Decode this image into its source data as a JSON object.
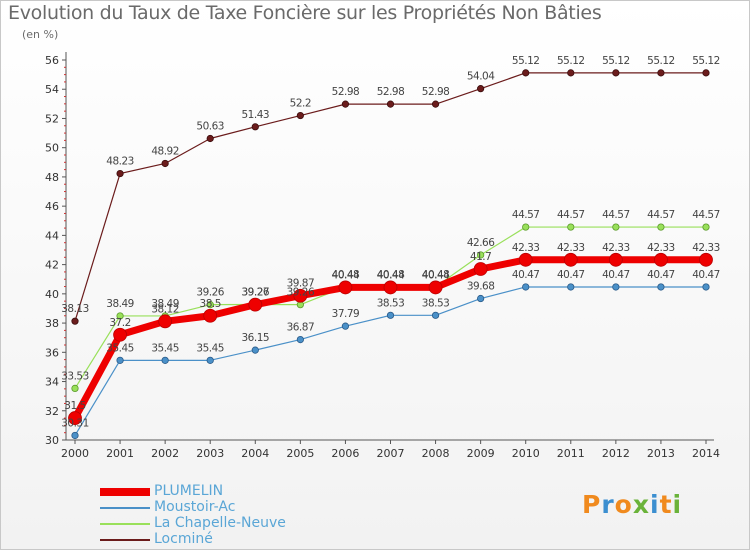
{
  "chart_data": {
    "type": "line",
    "title": "Evolution du Taux de Taxe Foncière sur les Propriétés Non Bâties",
    "unit_label": "(en %)",
    "xlabel": "",
    "ylabel": "",
    "categories": [
      "2000",
      "2001",
      "2002",
      "2003",
      "2004",
      "2005",
      "2006",
      "2007",
      "2008",
      "2009",
      "2010",
      "2011",
      "2012",
      "2013",
      "2014"
    ],
    "ylim": [
      30,
      56
    ],
    "yticks": [
      30,
      32,
      34,
      36,
      38,
      40,
      42,
      44,
      46,
      48,
      50,
      52,
      54,
      56
    ],
    "series": [
      {
        "name": "Locminé",
        "color": "#6b1c1c",
        "values": [
          38.13,
          48.23,
          48.92,
          50.63,
          51.43,
          52.2,
          52.98,
          52.98,
          52.98,
          54.04,
          55.12,
          55.12,
          55.12,
          55.12,
          55.12
        ]
      },
      {
        "name": "La Chapelle-Neuve",
        "color": "#99e05a",
        "values": [
          33.53,
          38.49,
          38.49,
          39.26,
          39.27,
          39.26,
          40.48,
          40.48,
          40.48,
          42.66,
          44.57,
          44.57,
          44.57,
          44.57,
          44.57
        ]
      },
      {
        "name": "Moustoir-Ac",
        "color": "#4a90c8",
        "values": [
          30.31,
          35.45,
          35.45,
          35.45,
          36.15,
          36.87,
          37.79,
          38.53,
          38.53,
          39.68,
          40.47,
          40.47,
          40.47,
          40.47,
          40.47
        ]
      },
      {
        "name": "PLUMELIN",
        "color": "#ee0000",
        "values": [
          31.5,
          37.2,
          38.12,
          38.5,
          39.26,
          39.87,
          40.44,
          40.44,
          40.44,
          41.7,
          42.33,
          42.33,
          42.33,
          42.33,
          42.33
        ]
      }
    ],
    "data_labels": {
      "Locminé": [
        "38.13",
        "48.23",
        "48.92",
        "50.63",
        "51.43",
        "52.2",
        "52.98",
        "52.98",
        "52.98",
        "54.04",
        "55.12",
        "55.12",
        "55.12",
        "55.12",
        "55.12"
      ],
      "La Chapelle-Neuve": [
        "33.53",
        "38.49",
        "38.49",
        "39.26",
        "39.27",
        "39.26",
        "40.48",
        "40.48",
        "40.48",
        "42.66",
        "44.57",
        "44.57",
        "44.57",
        "44.57",
        "44.57"
      ],
      "Moustoir-Ac": [
        "30.31",
        "35.45",
        "35.45",
        "35.45",
        "36.15",
        "36.87",
        "37.79",
        "38.53",
        "38.53",
        "39.68",
        "40.47",
        "40.47",
        "40.47",
        "40.47",
        "40.47"
      ],
      "PLUMELIN": [
        "31.5",
        "37.2",
        "38.12",
        "38.5",
        "39.26",
        "39.87",
        "40.44",
        "40.44",
        "40.44",
        "41.7",
        "42.33",
        "42.33",
        "42.33",
        "42.33",
        "42.33"
      ]
    },
    "legend": [
      {
        "label": "PLUMELIN",
        "color": "#ee0000",
        "width": 8
      },
      {
        "label": "Moustoir-Ac",
        "color": "#4a90c8",
        "width": 2
      },
      {
        "label": "La Chapelle-Neuve",
        "color": "#99e05a",
        "width": 2
      },
      {
        "label": "Locminé",
        "color": "#6b1c1c",
        "width": 2
      }
    ],
    "legend_position": "bottom-left",
    "grid": false
  },
  "logo": {
    "letters": [
      "P",
      "r",
      "o",
      "x",
      "i",
      "t",
      "i"
    ],
    "colors": [
      "#f08a1e",
      "#3c8fd0",
      "#f08a1e",
      "#6ab33a",
      "#3c8fd0",
      "#f08a1e",
      "#6ab33a"
    ]
  }
}
